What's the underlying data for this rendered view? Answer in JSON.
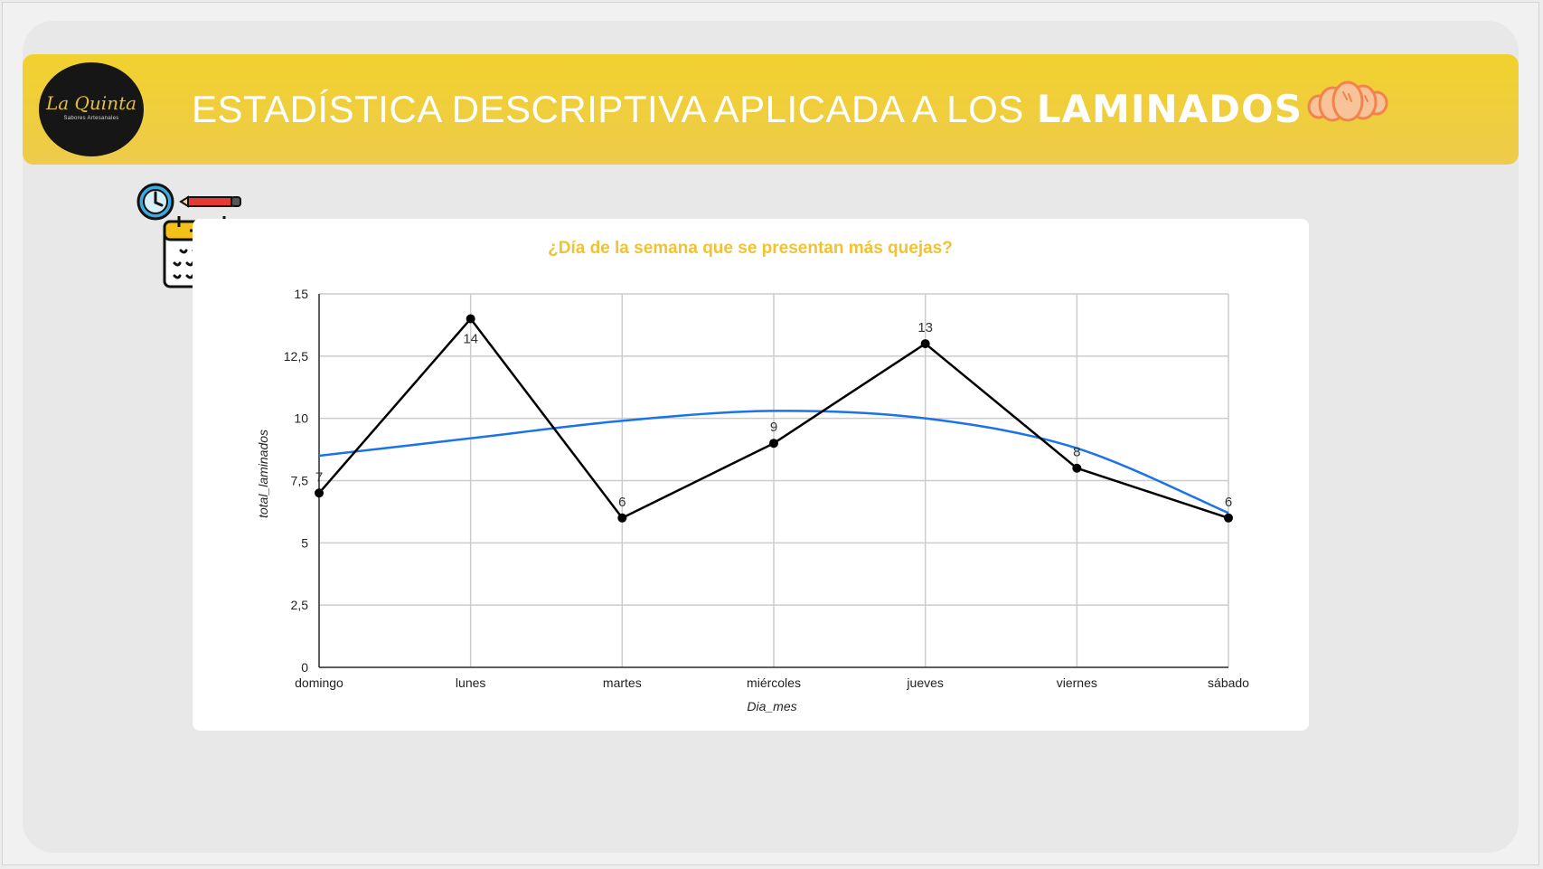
{
  "header": {
    "title_lead": "ESTADÍSTICA DESCRIPTIVA APLICADA A LOS",
    "title_emphasis": "LAMINADOS",
    "background": "#f1d12e"
  },
  "logo": {
    "name": "La Quinta",
    "tagline": "Sabores Artesanales"
  },
  "icons": {
    "logo": "la-quinta-logo",
    "croissant": "croissant-icon",
    "clock": "clock-icon",
    "pencil": "pencil-icon",
    "calendar": "calendar-icon"
  },
  "chart_data": {
    "type": "line",
    "title": "¿Día de la semana que se presentan más quejas?",
    "title_color": "#f1c232",
    "xlabel": "Dia_mes",
    "ylabel": "total_laminados",
    "categories": [
      "domingo",
      "lunes",
      "martes",
      "miércoles",
      "jueves",
      "viernes",
      "sábado"
    ],
    "series": [
      {
        "values": [
          7,
          14,
          6,
          9,
          13,
          8,
          6
        ],
        "data_labels": [
          "7",
          "14",
          "6",
          "9",
          "13",
          "8",
          "6"
        ],
        "color": "#000000"
      }
    ],
    "trendline": {
      "type": "polynomial",
      "color": "#1a73e8",
      "values": [
        8.5,
        9.2,
        9.9,
        10.3,
        10.0,
        8.8,
        6.2
      ]
    },
    "ylim": [
      0,
      15
    ],
    "yticks": [
      0,
      2.5,
      5,
      7.5,
      10,
      12.5,
      15
    ],
    "ytick_labels": [
      "0",
      "2,5",
      "5",
      "7,5",
      "10",
      "12,5",
      "15"
    ],
    "grid": true,
    "legend": "none"
  }
}
